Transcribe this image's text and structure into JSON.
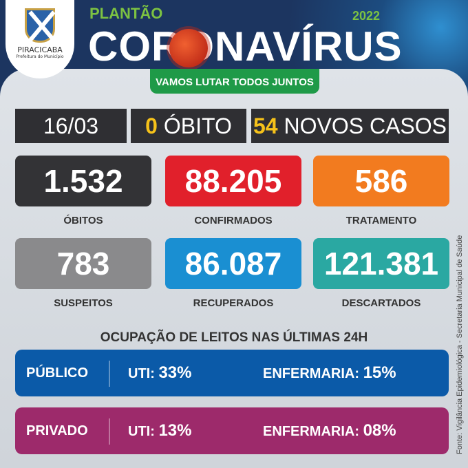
{
  "header": {
    "logo_name": "PIRACICABA",
    "logo_sub": "Prefeitura do Município",
    "kicker": "PLANTÃO",
    "title": "CORONAVÍRUS",
    "year": "2022",
    "slogan": "VAMOS LUTAR TODOS JUNTOS"
  },
  "summary": {
    "date": "16/03",
    "deaths_count": "0",
    "deaths_label": "ÓBITO",
    "new_cases_count": "54",
    "new_cases_label": "NOVOS CASOS"
  },
  "cards": [
    {
      "value": "1.532",
      "label": "ÓBITOS",
      "color": "#333336"
    },
    {
      "value": "88.205",
      "label": "CONFIRMADOS",
      "color": "#e1202b"
    },
    {
      "value": "586",
      "label": "TRATAMENTO",
      "color": "#f27b1f"
    },
    {
      "value": "783",
      "label": "SUSPEITOS",
      "color": "#8a8a8c"
    },
    {
      "value": "86.087",
      "label": "RECUPERADOS",
      "color": "#1a8fd2"
    },
    {
      "value": "121.381",
      "label": "DESCARTADOS",
      "color": "#2aa8a2"
    }
  ],
  "occupancy": {
    "title": "OCUPAÇÃO DE LEITOS NAS ÚLTIMAS 24H",
    "rows": [
      {
        "sector": "PÚBLICO",
        "uti_label": "UTI:",
        "uti": "33%",
        "ward_label": "ENFERMARIA:",
        "ward": "15%",
        "color": "#0b5aa8"
      },
      {
        "sector": "PRIVADO",
        "uti_label": "UTI:",
        "uti": "13%",
        "ward_label": "ENFERMARIA:",
        "ward": "08%",
        "color": "#9d2a6b"
      }
    ]
  },
  "source": "Fonte: Vigilância Epidemiológica - Secretaria Municipal de Saúde"
}
